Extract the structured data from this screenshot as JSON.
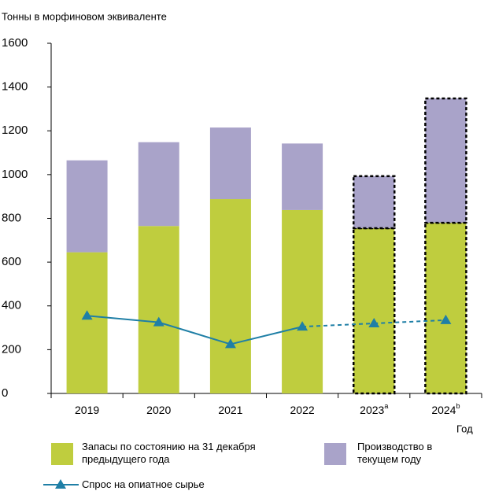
{
  "chart_data": {
    "type": "stacked_bar_line",
    "y_axis_label": "Тонны в морфиновом эквиваленте",
    "x_axis_label": "Год",
    "categories": [
      "2019",
      "2020",
      "2021",
      "2022",
      "2023",
      "2024"
    ],
    "category_superscripts": [
      null,
      null,
      null,
      null,
      "a",
      "b"
    ],
    "estimated": [
      false,
      false,
      false,
      false,
      true,
      true
    ],
    "series": [
      {
        "name": "Запасы по состоянию на 31 декабря предыдущего года",
        "color": "#bfcd3e",
        "values": [
          645,
          765,
          888,
          838,
          755,
          780
        ]
      },
      {
        "name": "Производство в текущем году",
        "color": "#a9a3c9",
        "values": [
          420,
          383,
          327,
          304,
          238,
          568
        ]
      },
      {
        "name": "Спрос на опиатное сырье",
        "color": "#1f7fa6",
        "type": "line",
        "values": [
          355,
          325,
          225,
          305,
          320,
          335
        ]
      }
    ],
    "ylim": [
      0,
      1600
    ],
    "yticks": [
      0,
      200,
      400,
      600,
      800,
      1000,
      1200,
      1400,
      1600
    ]
  }
}
